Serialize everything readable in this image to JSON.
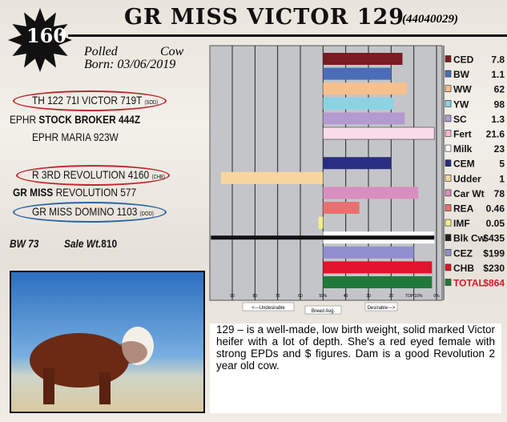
{
  "header": {
    "name": "GR MISS VICTOR 129",
    "reg": "(44040029)",
    "lot": "160",
    "polled": "Polled",
    "sex": "Cow",
    "born": "Born: 03/06/2019"
  },
  "pedigree": {
    "sire_sire": "TH 122 71I VICTOR 719T",
    "sire_sire_code": "(SOD)",
    "sire_pre": "EPHR",
    "sire": "STOCK BROKER 444Z",
    "sire_dam": "EPHR MARIA 923W",
    "dam_sire": "R 3RD REVOLUTION 4160",
    "dam_sire_code": "(CHB)",
    "dam_pre": "GR MISS",
    "dam": "REVOLUTION 577",
    "dam_dam": "GR MISS DOMINO 1103",
    "dam_dam_code": "(DOD)"
  },
  "stats": {
    "bw": "BW 73",
    "sale_label": "Sale Wt.",
    "sale": "810"
  },
  "description": "129 – is a well-made, low birth weight, solid marked Victor heifer with a lot of depth. She's a red eyed female with strong EPDs and $ figures. Dam is a good Revolution 2 year old cow.",
  "chart_data": {
    "type": "bar",
    "orientation": "horizontal",
    "x_axis": "percentile rank",
    "xlim": [
      90,
      0
    ],
    "baseline": 50,
    "tick_labels": [
      "90",
      "80",
      "70",
      "60",
      "50%",
      "40",
      "30",
      "20",
      "TOP 10%",
      "0%"
    ],
    "left_label": "<---Undesirable",
    "center_label": "Breed Avg.",
    "right_label": "Desirable--->",
    "traits": [
      {
        "name": "CED",
        "value": "7.8",
        "percentile": 15,
        "color": "#7a1c22"
      },
      {
        "name": "BW",
        "value": "1.1",
        "percentile": 20,
        "color": "#4b6db8"
      },
      {
        "name": "WW",
        "value": "62",
        "percentile": 13,
        "color": "#f6c08f"
      },
      {
        "name": "YW",
        "value": "98",
        "percentile": 19,
        "color": "#8ad3e3"
      },
      {
        "name": "SC",
        "value": "1.3",
        "percentile": 14,
        "color": "#b39bd0"
      },
      {
        "name": "Fert",
        "value": "21.6",
        "percentile": 1,
        "color": "#f7b6d2"
      },
      {
        "name": "Milk",
        "value": "23",
        "percentile": 50,
        "color": "#ffffff"
      },
      {
        "name": "CEM",
        "value": "5",
        "percentile": 20,
        "color": "#2a2e82"
      },
      {
        "name": "Udder",
        "value": "1",
        "percentile": 95,
        "color": "#f8d6a0"
      },
      {
        "name": "Car Wt",
        "value": "78",
        "percentile": 8,
        "color": "#d88ec0"
      },
      {
        "name": "REA",
        "value": "0.46",
        "percentile": 34,
        "color": "#ea7070"
      },
      {
        "name": "IMF",
        "value": "0.05",
        "percentile": 52,
        "color": "#f5ef8c"
      },
      {
        "name": "Blk Cw",
        "value": "$435",
        "percentile": 1,
        "color": "#222222"
      },
      {
        "name": "CEZ",
        "value": "$199",
        "percentile": 10,
        "color": "#8f8fcf"
      },
      {
        "name": "CHB",
        "value": "$230",
        "percentile": 2,
        "color": "#e0142a"
      },
      {
        "name": "TOTAL",
        "value": "$864",
        "percentile": 2,
        "color": "#1f7a3a"
      }
    ]
  }
}
